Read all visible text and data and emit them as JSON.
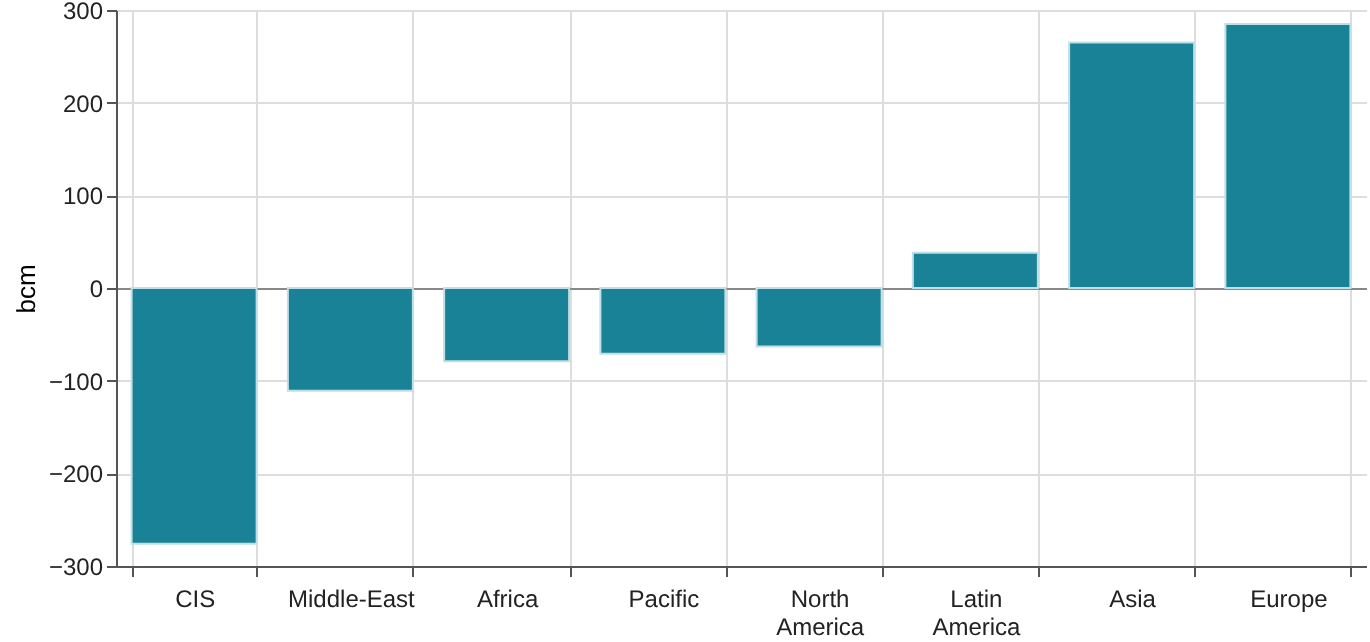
{
  "chart_data": {
    "type": "bar",
    "ylabel": "bcm",
    "categories": [
      "CIS",
      "Middle-East",
      "Africa",
      "Pacific",
      "North America",
      "Latin America",
      "Asia",
      "Europe"
    ],
    "values": [
      -276,
      -111,
      -79,
      -71,
      -63,
      38,
      265,
      285
    ],
    "color": "#1a8296",
    "ylim": [
      -300,
      300
    ],
    "yticks": [
      -300,
      -200,
      -100,
      0,
      100,
      200,
      300
    ],
    "grid": true
  }
}
